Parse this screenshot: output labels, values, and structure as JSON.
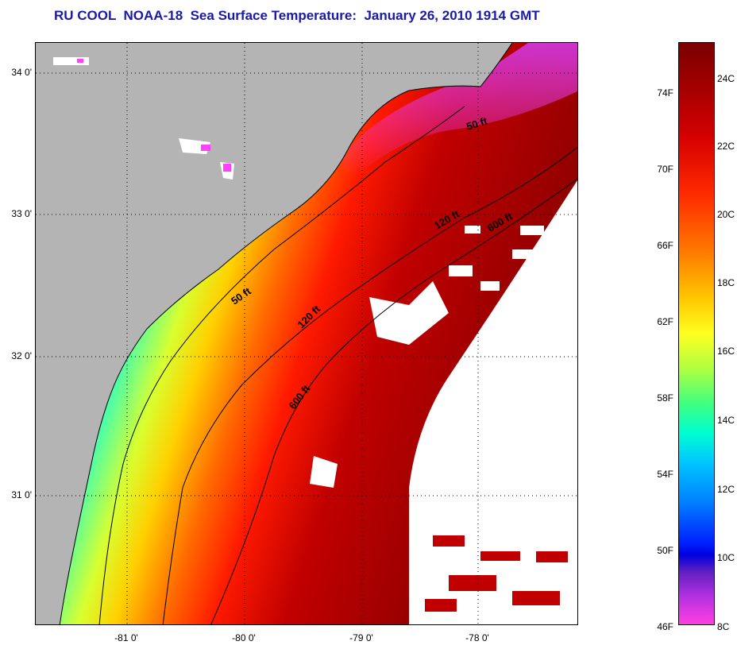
{
  "title": "RU COOL  NOAA-18  Sea Surface Temperature:  January 26, 2010 1914 GMT",
  "map": {
    "lat_labels": [
      "34 0'",
      "33 0'",
      "32 0'",
      "31 0'"
    ],
    "lon_labels": [
      "-81 0'",
      "-80 0'",
      "-79 0'",
      "-78 0'"
    ],
    "contours": [
      "50 ft",
      "50 ft",
      "120 ft",
      "120 ft",
      "600 ft",
      "600 ft"
    ]
  },
  "colorbar": {
    "fahrenheit": [
      "74F",
      "70F",
      "66F",
      "62F",
      "58F",
      "54F",
      "50F",
      "46F"
    ],
    "celsius": [
      "24C",
      "22C",
      "20C",
      "18C",
      "16C",
      "14C",
      "12C",
      "10C",
      "8C"
    ]
  },
  "colors": {
    "land": "#b4b4b4",
    "title": "#1a1aa8",
    "cloud": "#ffffff"
  }
}
